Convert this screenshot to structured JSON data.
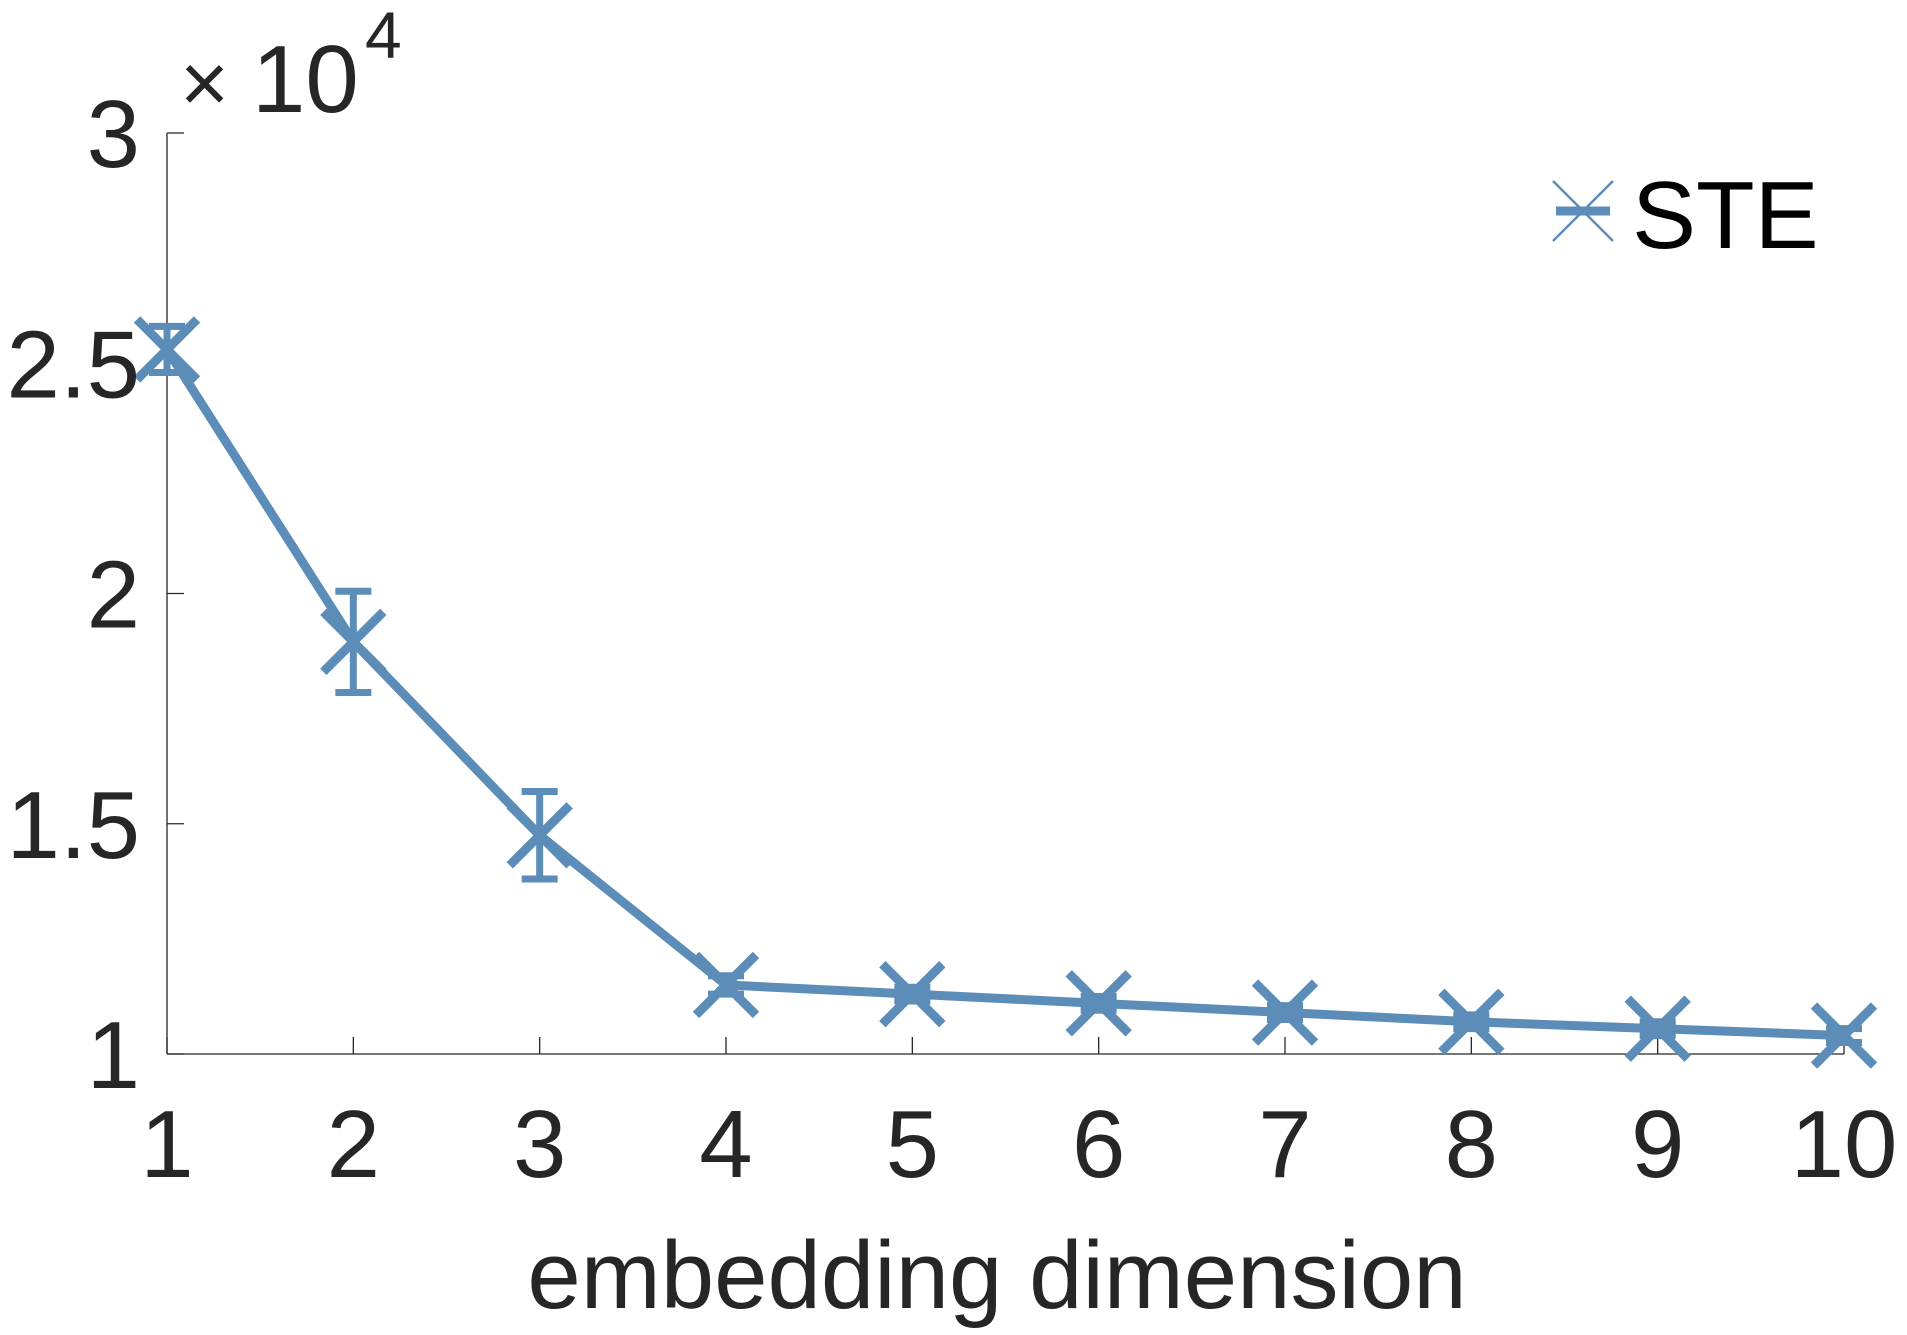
{
  "chart_data": {
    "type": "line",
    "xlabel": "embedding dimension",
    "ylabel": "",
    "title": "",
    "x": [
      1,
      2,
      3,
      4,
      5,
      6,
      7,
      8,
      9,
      10
    ],
    "x_ticks": [
      "1",
      "2",
      "3",
      "4",
      "5",
      "6",
      "7",
      "8",
      "9",
      "10"
    ],
    "y_ticks": [
      "1",
      "1.5",
      "2",
      "2.5",
      "3"
    ],
    "y_tick_values": [
      1,
      1.5,
      2,
      2.5,
      3
    ],
    "y_multiplier": {
      "base": "10",
      "exponent": "4",
      "symbol": "×"
    },
    "xlim": [
      1,
      10
    ],
    "ylim": [
      10000,
      30000
    ],
    "grid": false,
    "legend_position": "top-right",
    "series": [
      {
        "name": "STE",
        "color": "#5b8db8",
        "marker": "x-icon",
        "values": [
          25300,
          18950,
          14750,
          11500,
          11300,
          11100,
          10900,
          10700,
          10550,
          10400
        ],
        "error": [
          500,
          1100,
          950,
          200,
          150,
          150,
          150,
          150,
          150,
          150
        ]
      }
    ]
  }
}
